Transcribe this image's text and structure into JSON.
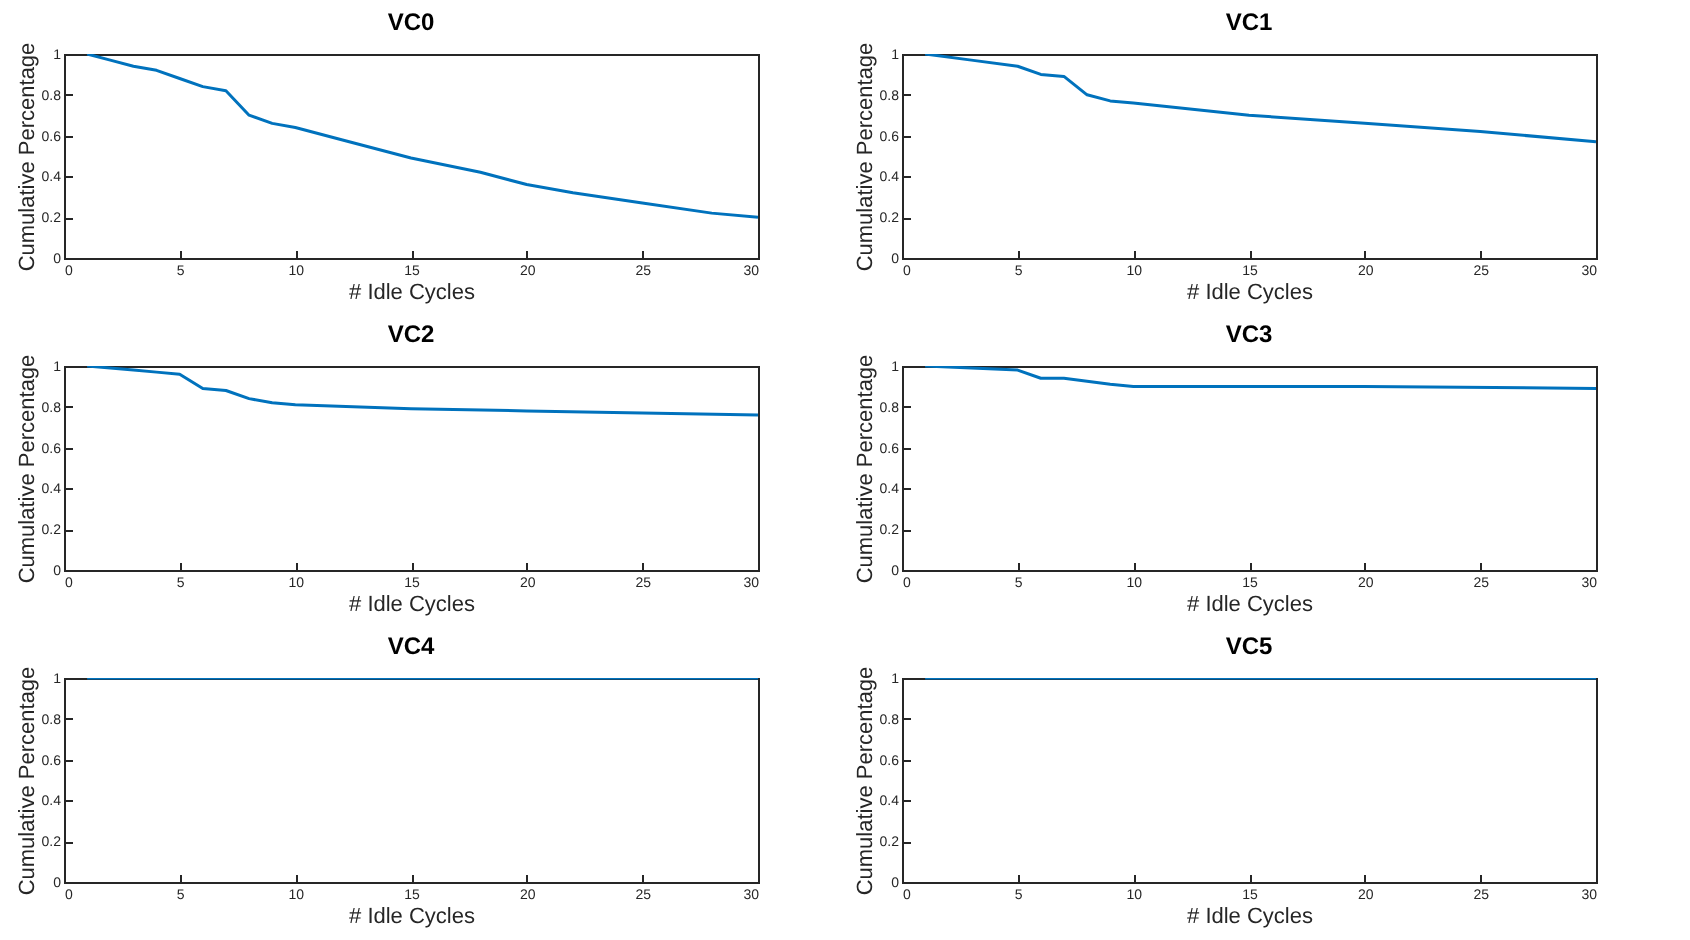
{
  "chart_data": [
    {
      "type": "line",
      "title": "VC0",
      "xlabel": "# Idle Cycles",
      "ylabel": "Cumulative Percentage",
      "color": "#0072bd",
      "xlim": [
        0,
        30
      ],
      "ylim": [
        0,
        1
      ],
      "xticks": [
        0,
        5,
        10,
        15,
        20,
        25,
        30
      ],
      "yticks": [
        0,
        0.2,
        0.4,
        0.6,
        0.8,
        1
      ],
      "x": [
        1,
        2,
        3,
        4,
        5,
        6,
        7,
        8,
        9,
        10,
        12,
        15,
        18,
        20,
        22,
        25,
        28,
        30
      ],
      "values": [
        1.0,
        0.97,
        0.94,
        0.92,
        0.88,
        0.84,
        0.82,
        0.7,
        0.66,
        0.64,
        0.58,
        0.49,
        0.42,
        0.36,
        0.32,
        0.27,
        0.22,
        0.2
      ]
    },
    {
      "type": "line",
      "title": "VC1",
      "xlabel": "# Idle Cycles",
      "ylabel": "Cumulative Percentage",
      "color": "#0072bd",
      "xlim": [
        0,
        30
      ],
      "ylim": [
        0,
        1
      ],
      "xticks": [
        0,
        5,
        10,
        15,
        20,
        25,
        30
      ],
      "yticks": [
        0,
        0.2,
        0.4,
        0.6,
        0.8,
        1
      ],
      "x": [
        1,
        3,
        5,
        6,
        7,
        8,
        9,
        10,
        15,
        20,
        25,
        30
      ],
      "values": [
        1.0,
        0.97,
        0.94,
        0.9,
        0.89,
        0.8,
        0.77,
        0.76,
        0.7,
        0.66,
        0.62,
        0.57
      ]
    },
    {
      "type": "line",
      "title": "VC2",
      "xlabel": "# Idle Cycles",
      "ylabel": "Cumulative Percentage",
      "color": "#0072bd",
      "xlim": [
        0,
        30
      ],
      "ylim": [
        0,
        1
      ],
      "xticks": [
        0,
        5,
        10,
        15,
        20,
        25,
        30
      ],
      "yticks": [
        0,
        0.2,
        0.4,
        0.6,
        0.8,
        1
      ],
      "x": [
        1,
        3,
        4,
        5,
        6,
        7,
        8,
        9,
        10,
        15,
        20,
        25,
        30
      ],
      "values": [
        1.0,
        0.98,
        0.97,
        0.96,
        0.89,
        0.88,
        0.84,
        0.82,
        0.81,
        0.79,
        0.78,
        0.77,
        0.76
      ]
    },
    {
      "type": "line",
      "title": "VC3",
      "xlabel": "# Idle Cycles",
      "ylabel": "Cumulative Percentage",
      "color": "#0072bd",
      "xlim": [
        0,
        30
      ],
      "ylim": [
        0,
        1
      ],
      "xticks": [
        0,
        5,
        10,
        15,
        20,
        25,
        30
      ],
      "yticks": [
        0,
        0.2,
        0.4,
        0.6,
        0.8,
        1
      ],
      "x": [
        1,
        3,
        5,
        6,
        7,
        9,
        10,
        20,
        30
      ],
      "values": [
        1.0,
        0.99,
        0.98,
        0.94,
        0.94,
        0.91,
        0.9,
        0.9,
        0.89
      ]
    },
    {
      "type": "line",
      "title": "VC4",
      "xlabel": "# Idle Cycles",
      "ylabel": "Cumulative Percentage",
      "color": "#0072bd",
      "xlim": [
        0,
        30
      ],
      "ylim": [
        0,
        1
      ],
      "xticks": [
        0,
        5,
        10,
        15,
        20,
        25,
        30
      ],
      "yticks": [
        0,
        0.2,
        0.4,
        0.6,
        0.8,
        1
      ],
      "x": [
        1,
        30
      ],
      "values": [
        1,
        1
      ]
    },
    {
      "type": "line",
      "title": "VC5",
      "xlabel": "# Idle Cycles",
      "ylabel": "Cumulative Percentage",
      "color": "#0072bd",
      "xlim": [
        0,
        30
      ],
      "ylim": [
        0,
        1
      ],
      "xticks": [
        0,
        5,
        10,
        15,
        20,
        25,
        30
      ],
      "yticks": [
        0,
        0.2,
        0.4,
        0.6,
        0.8,
        1
      ],
      "x": [
        1,
        30
      ],
      "values": [
        1,
        1
      ]
    }
  ]
}
